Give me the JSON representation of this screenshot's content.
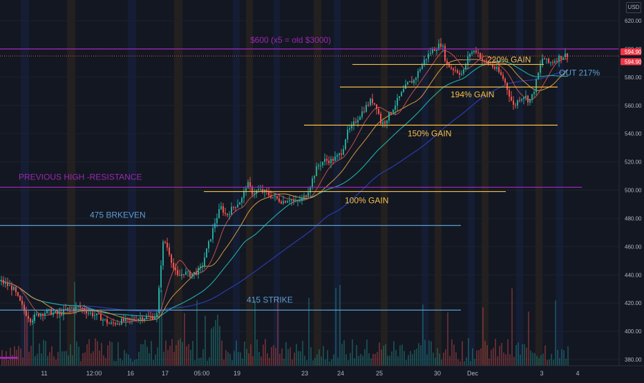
{
  "chart_data": {
    "type": "line",
    "currency": "USD",
    "y_range": [
      375,
      632
    ],
    "y_ticks": [
      380,
      400,
      420,
      440,
      460,
      480,
      500,
      520,
      540,
      560,
      580,
      600,
      620
    ],
    "x_ticks": [
      "11",
      "12:00",
      "16",
      "17",
      "05:00",
      "19",
      "23",
      "24",
      "25",
      "30",
      "Dec",
      "3",
      "4"
    ],
    "last_price_labels": [
      "594.90",
      "594.90"
    ],
    "colors": {
      "up": "#26a69a",
      "down": "#ef5350",
      "purple": "#9c27b0",
      "gold": "#f5c04a",
      "blue": "#5a9fd4",
      "ma_fast": "#c2504f",
      "ma_mid": "#d99a3d",
      "ma_slow": "#1fa5a0",
      "ma_long": "#2b3cb0"
    },
    "annotations": [
      {
        "text": "$600   (x5 = old $3000)",
        "price": 601,
        "color": "#9c27b0"
      },
      {
        "text": "PREVIOUS HIGH -RESISTANCE",
        "price": 503,
        "color": "#9c27b0"
      },
      {
        "text": "475 BRKEVEN",
        "price": 475,
        "color": "#5a9fd4"
      },
      {
        "text": "415 STRIKE",
        "price": 415,
        "color": "#5a9fd4"
      },
      {
        "text": "100% GAIN",
        "price": 499,
        "color": "#f5c04a"
      },
      {
        "text": "150% GAIN",
        "price": 546,
        "color": "#f5c04a"
      },
      {
        "text": "194% GAIN",
        "price": 573,
        "color": "#f5c04a"
      },
      {
        "text": "220% GAIN",
        "price": 589,
        "color": "#f5c04a"
      },
      {
        "text": "OUT 217%",
        "price": 589,
        "color": "#5a9fd4"
      }
    ],
    "price_path": [
      [
        0,
        436
      ],
      [
        20,
        430
      ],
      [
        35,
        415
      ],
      [
        45,
        408
      ],
      [
        55,
        412
      ],
      [
        70,
        414
      ],
      [
        85,
        412
      ],
      [
        100,
        416
      ],
      [
        115,
        417
      ],
      [
        130,
        413
      ],
      [
        145,
        410
      ],
      [
        160,
        405
      ],
      [
        175,
        407
      ],
      [
        190,
        408
      ],
      [
        205,
        410
      ],
      [
        220,
        410
      ],
      [
        228,
        412
      ],
      [
        232,
        440
      ],
      [
        236,
        462
      ],
      [
        240,
        463
      ],
      [
        246,
        455
      ],
      [
        252,
        444
      ],
      [
        258,
        438
      ],
      [
        266,
        442
      ],
      [
        275,
        440
      ],
      [
        285,
        442
      ],
      [
        292,
        445
      ],
      [
        298,
        455
      ],
      [
        305,
        466
      ],
      [
        312,
        478
      ],
      [
        320,
        488
      ],
      [
        328,
        482
      ],
      [
        338,
        488
      ],
      [
        350,
        493
      ],
      [
        358,
        505
      ],
      [
        366,
        498
      ],
      [
        375,
        500
      ],
      [
        385,
        498
      ],
      [
        400,
        494
      ],
      [
        410,
        492
      ],
      [
        420,
        494
      ],
      [
        428,
        491
      ],
      [
        436,
        493
      ],
      [
        444,
        497
      ],
      [
        452,
        507
      ],
      [
        460,
        517
      ],
      [
        470,
        521
      ],
      [
        480,
        521
      ],
      [
        490,
        524
      ],
      [
        496,
        528
      ],
      [
        502,
        540
      ],
      [
        510,
        545
      ],
      [
        518,
        551
      ],
      [
        530,
        559
      ],
      [
        538,
        564
      ],
      [
        546,
        559
      ],
      [
        552,
        547
      ],
      [
        558,
        549
      ],
      [
        568,
        557
      ],
      [
        580,
        567
      ],
      [
        590,
        575
      ],
      [
        600,
        578
      ],
      [
        608,
        586
      ],
      [
        616,
        593
      ],
      [
        624,
        598
      ],
      [
        632,
        601
      ],
      [
        640,
        604
      ],
      [
        646,
        590
      ],
      [
        652,
        587
      ],
      [
        660,
        585
      ],
      [
        670,
        582
      ],
      [
        680,
        597
      ],
      [
        690,
        599
      ],
      [
        700,
        591
      ],
      [
        710,
        589
      ],
      [
        720,
        585
      ],
      [
        730,
        578
      ],
      [
        738,
        567
      ],
      [
        744,
        559
      ],
      [
        752,
        565
      ],
      [
        760,
        567
      ],
      [
        766,
        563
      ],
      [
        772,
        568
      ],
      [
        778,
        580
      ],
      [
        786,
        594
      ],
      [
        794,
        590
      ],
      [
        800,
        591
      ],
      [
        810,
        594
      ],
      [
        820,
        596
      ]
    ]
  }
}
